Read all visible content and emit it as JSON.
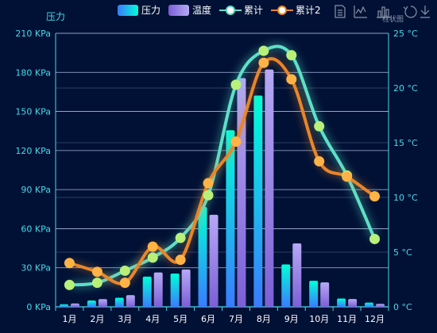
{
  "chart_data": {
    "type": "bar",
    "categories": [
      "1月",
      "2月",
      "3月",
      "4月",
      "5月",
      "6月",
      "7月",
      "8月",
      "9月",
      "10月",
      "11月",
      "12月"
    ],
    "series": [
      {
        "name": "压力",
        "type": "bar",
        "axis": "left",
        "values": [
          2.0,
          4.9,
          7.0,
          23.2,
          25.6,
          76.7,
          135.6,
          162.2,
          32.6,
          20.0,
          6.4,
          3.3
        ]
      },
      {
        "name": "温度",
        "type": "bar",
        "axis": "left",
        "values": [
          2.6,
          5.9,
          9.0,
          26.4,
          28.7,
          70.7,
          175.6,
          182.2,
          48.7,
          18.8,
          6.0,
          2.3
        ]
      },
      {
        "name": "累计",
        "type": "line",
        "axis": "right",
        "values": [
          2.0,
          2.2,
          3.3,
          4.5,
          6.3,
          10.2,
          20.3,
          23.4,
          23.0,
          16.5,
          12.0,
          6.2
        ]
      },
      {
        "name": "累计2",
        "type": "line",
        "axis": "right",
        "values": [
          4.0,
          3.2,
          2.2,
          5.5,
          4.3,
          11.3,
          15.1,
          22.3,
          20.8,
          13.3,
          11.9,
          10.1
        ]
      }
    ],
    "y_left": {
      "name": "压力",
      "min": 0,
      "max": 210,
      "interval": 30,
      "unit": "KPa"
    },
    "y_right": {
      "min": 0,
      "max": 25,
      "interval": 5,
      "unit": "°C"
    },
    "legend_position": "top-center",
    "grid": true,
    "colors": {
      "bar1_top": "#00ffd8",
      "bar1_bottom": "#3a7bff",
      "bar2_top": "#b6a9f5",
      "bar2_bottom": "#7c5fd6",
      "line1": "#5ee0c8",
      "line1_point": "#b8f07a",
      "line2": "#e8862a",
      "line2_point": "#ffb347",
      "axis": "#4ad8e8",
      "grid": "#c9d6ff"
    }
  },
  "toolbox": {
    "icons": [
      "data-view-icon",
      "line-chart-icon",
      "bar-chart-icon",
      "restore-icon",
      "download-icon"
    ],
    "bar_tooltip": "柱状图"
  }
}
